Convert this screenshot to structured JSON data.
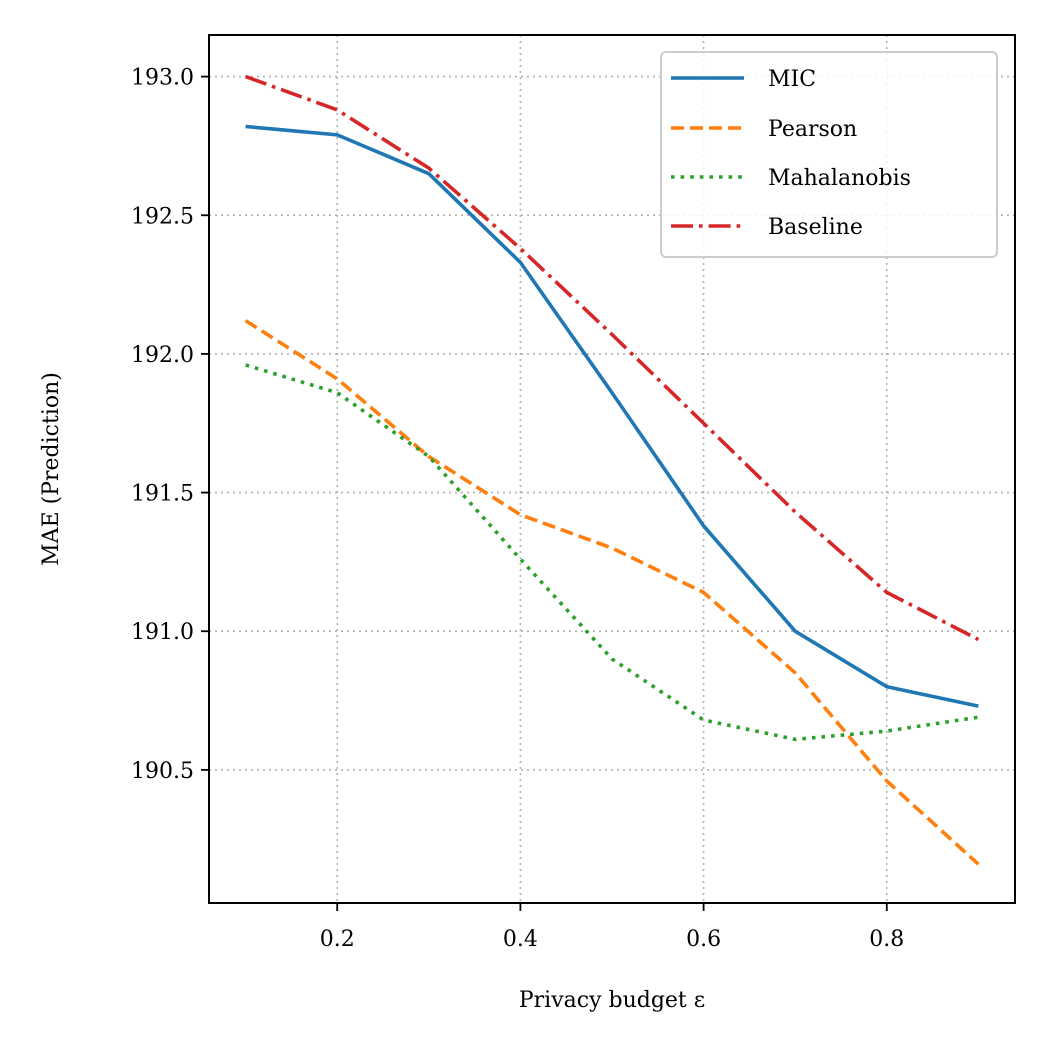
{
  "chart_data": {
    "type": "line",
    "title": "",
    "xlabel": "Privacy budget ε",
    "ylabel": "MAE (Prediction)",
    "xlim": [
      0.06,
      0.94
    ],
    "ylim": [
      190.02,
      193.15
    ],
    "xticks": [
      0.2,
      0.4,
      0.6,
      0.8
    ],
    "xtick_labels": [
      "0.2",
      "0.4",
      "0.6",
      "0.8"
    ],
    "yticks": [
      190.5,
      191.0,
      191.5,
      192.0,
      192.5,
      193.0
    ],
    "ytick_labels": [
      "190.5",
      "191.0",
      "191.5",
      "192.0",
      "192.5",
      "193.0"
    ],
    "grid": true,
    "legend_position": "top-right",
    "x": [
      0.1,
      0.2,
      0.3,
      0.4,
      0.5,
      0.6,
      0.7,
      0.8,
      0.9
    ],
    "series": [
      {
        "name": "MIC",
        "color": "#1f77b4",
        "style": "solid",
        "values": [
          192.82,
          192.79,
          192.65,
          192.33,
          191.86,
          191.38,
          191.0,
          190.8,
          190.73
        ]
      },
      {
        "name": "Pearson",
        "color": "#ff7f0e",
        "style": "dashed",
        "values": [
          192.12,
          191.91,
          191.63,
          191.42,
          191.3,
          191.14,
          190.85,
          190.46,
          190.16
        ]
      },
      {
        "name": "Mahalanobis",
        "color": "#2ca02c",
        "style": "dotted",
        "values": [
          191.96,
          191.86,
          191.63,
          191.26,
          190.9,
          190.68,
          190.61,
          190.64,
          190.69
        ]
      },
      {
        "name": "Baseline",
        "color": "#d62728",
        "style": "dashdot",
        "values": [
          193.0,
          192.88,
          192.67,
          192.38,
          192.07,
          191.75,
          191.43,
          191.14,
          190.97
        ]
      }
    ]
  }
}
